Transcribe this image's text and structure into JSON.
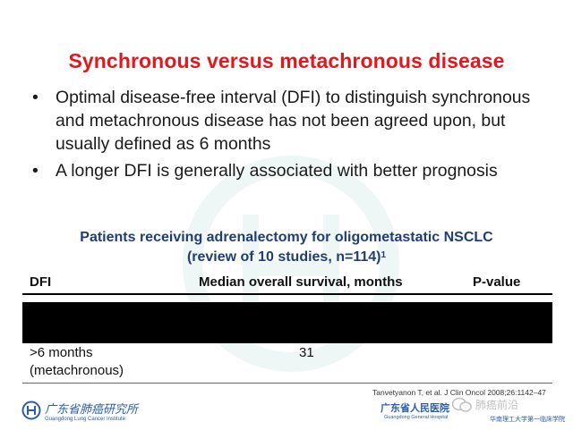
{
  "slide": {
    "title": "Synchronous versus metachronous disease",
    "bullets": [
      "Optimal disease-free interval (DFI) to distinguish synchronous and metachronous disease has not been agreed upon, but usually defined as 6 months",
      "A longer DFI is generally associated with better prognosis"
    ],
    "bullet_symbol": "•",
    "subtitle_line1": "Patients receiving adrenalectomy for oligometastatic NSCLC",
    "subtitle_line2": "(review of 10 studies, n=114)",
    "subtitle_ref": "1"
  },
  "table": {
    "headers": [
      "DFI",
      "Median overall survival, months",
      "P-value"
    ],
    "rows": [
      {
        "dfi_line1": ">6 months",
        "dfi_line2": "(metachronous)",
        "median_os": "31",
        "p_value": ""
      }
    ]
  },
  "citation": "Tanvetyanon T, et al. J Clin Oncol 2008;26:1142–47",
  "footer": {
    "left_logo_cn": "广东省肺癌研究所",
    "left_logo_en": "Guangdong Lung Cancer Institute",
    "right_logo_cn": "广东省人民医院",
    "right_logo_en": "Guangdong General Hospital",
    "wechat_name": "肺癌前沿",
    "wechat_sub": "华南理工大学第一临床学院"
  },
  "colors": {
    "title": "#e3181d",
    "subtitle": "#1f3e78",
    "logo": "#2a5ea8"
  }
}
